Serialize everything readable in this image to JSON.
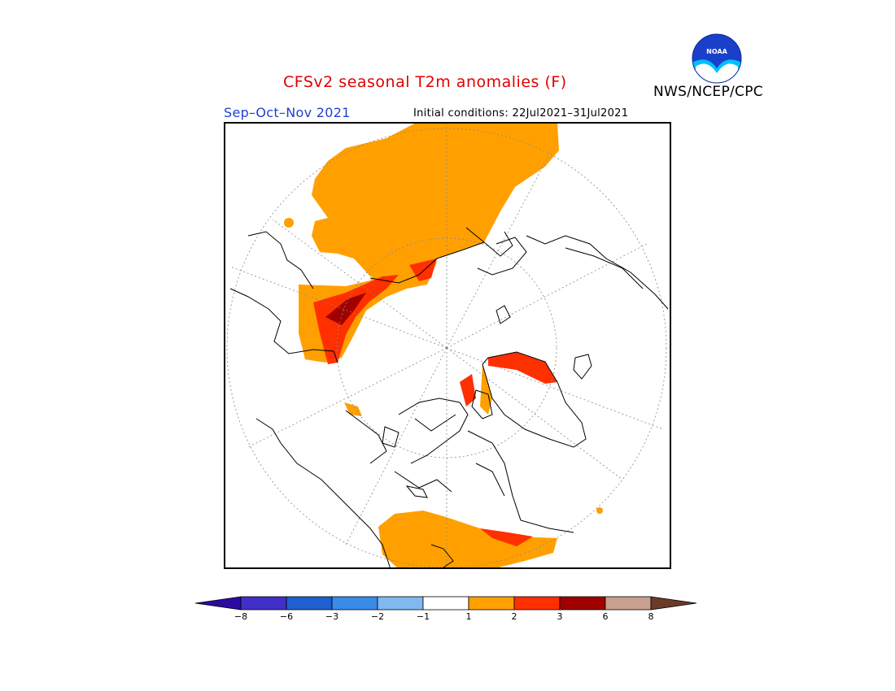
{
  "header": {
    "title": "CFSv2 seasonal T2m anomalies (F)",
    "title_color": "#e00000",
    "agency": "NWS/NCEP/CPC",
    "season": "Sep–Oct–Nov 2021",
    "season_color": "#2040d0",
    "initial_conditions": "Initial conditions: 22Jul2021–31Jul2021",
    "logo_text": "NOAA",
    "logo_icon": "noaa-logo-icon"
  },
  "map": {
    "projection": "north-polar-stereographic",
    "land_outline_color": "#000000",
    "graticule_color": "#888888",
    "anomaly_colors": {
      "one_to_two": "#ffa000",
      "two_to_three": "#ff3000",
      "three_to_six": "#a00000"
    }
  },
  "colorbar": {
    "ticks": [
      "−8",
      "−6",
      "−3",
      "−2",
      "−1",
      "1",
      "2",
      "3",
      "6",
      "8"
    ],
    "below_color": "#2a0aa0",
    "above_color": "#6b3a2a",
    "colors": [
      "#4030c8",
      "#1f5fcf",
      "#3a8ae8",
      "#80b8f0",
      "#ffffff",
      "#ffa000",
      "#ff3000",
      "#a00000",
      "#c8a090"
    ]
  }
}
